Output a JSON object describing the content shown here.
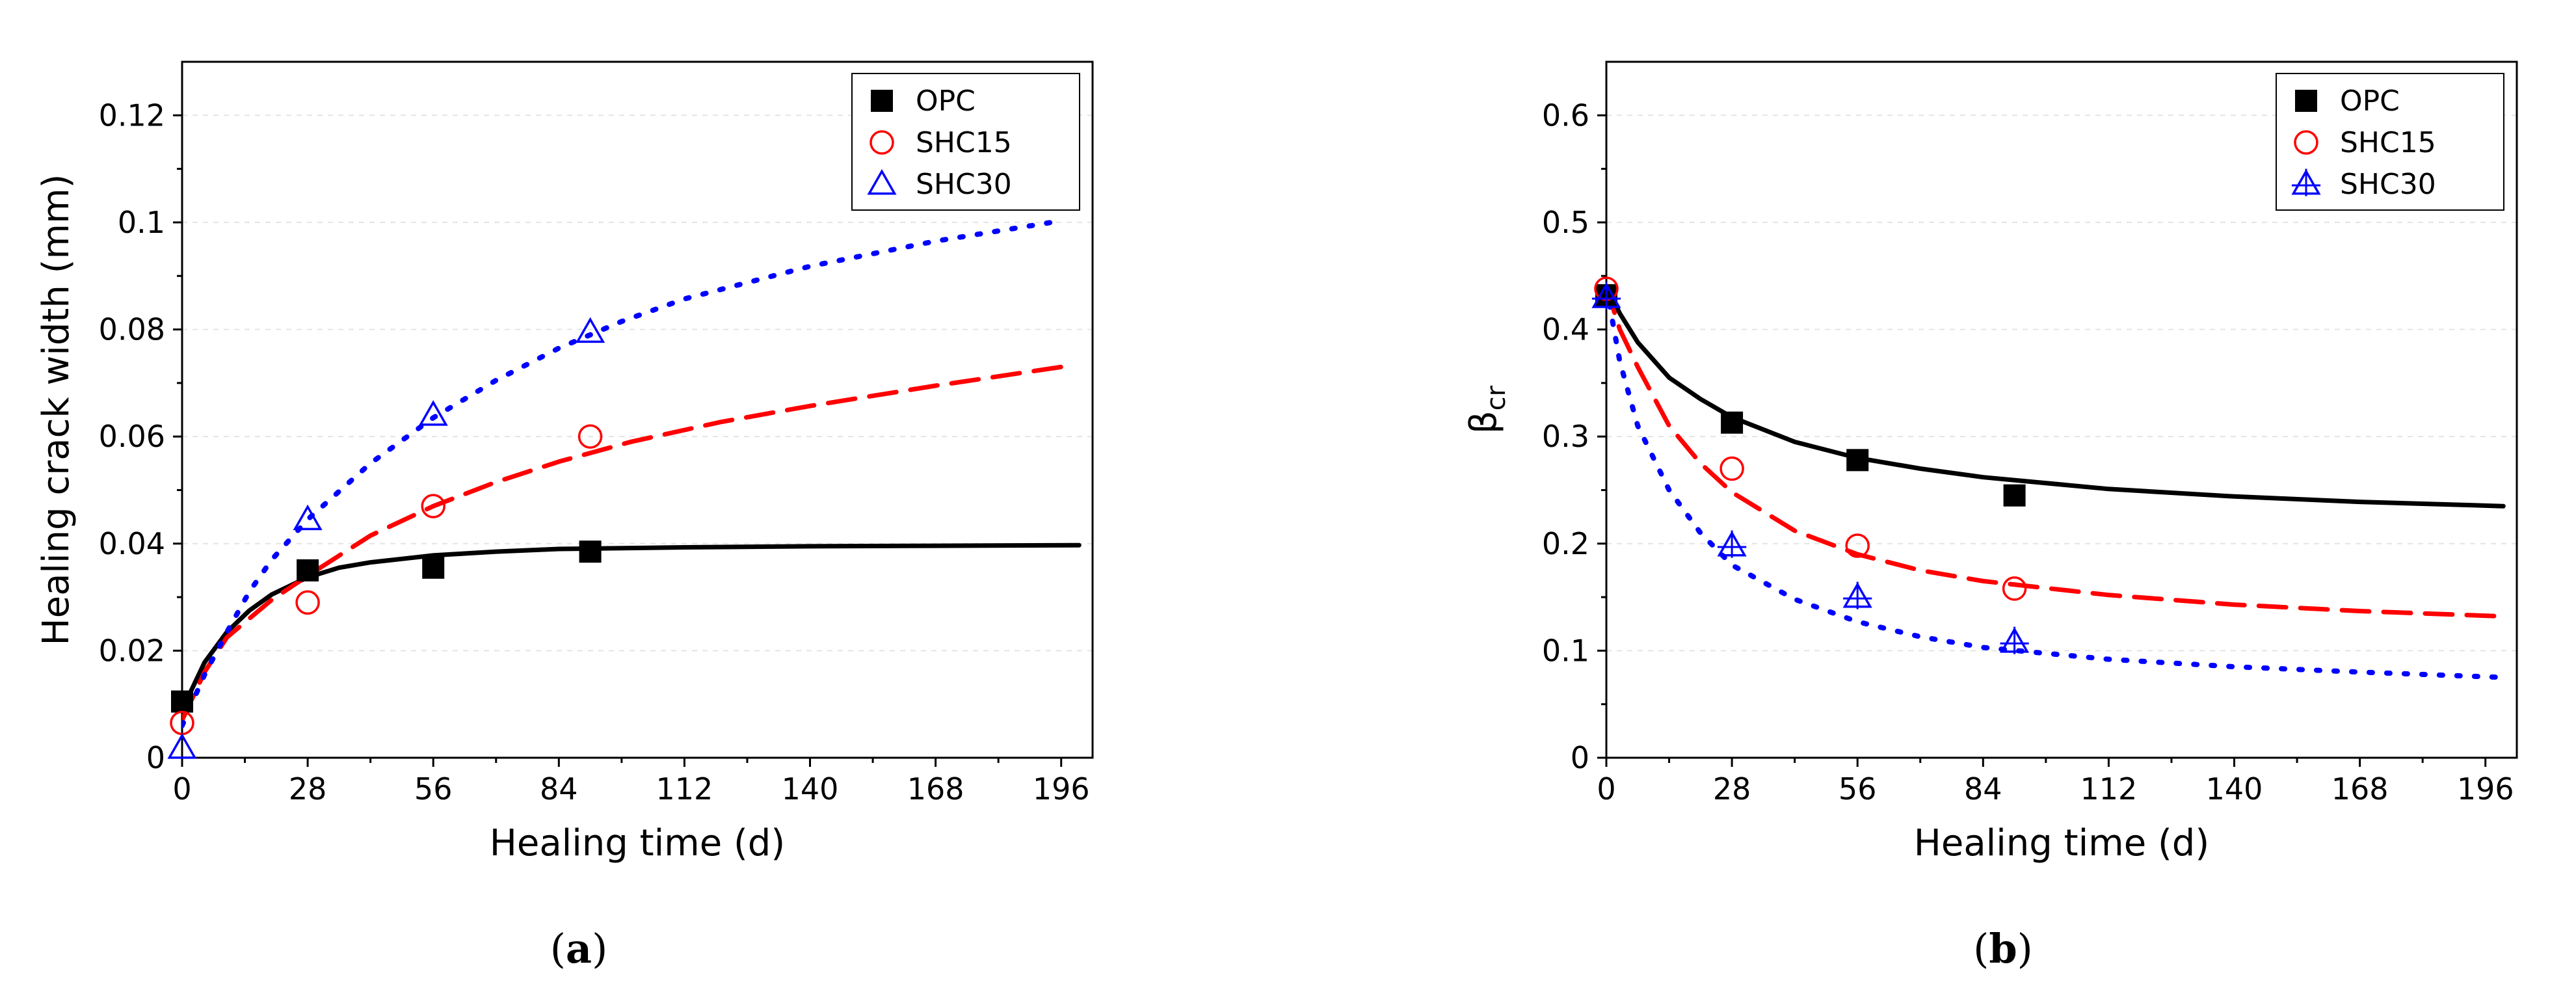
{
  "chart_data": [
    {
      "type": "scatter",
      "panel_label": {
        "open": "(",
        "letter": "a",
        "close": ")"
      },
      "xlabel": "Healing time (d)",
      "ylabel": "Healing crack width (mm)",
      "ylabel_main": "Healing crack width (mm)",
      "ylabel_sub": "",
      "xlim": [
        0,
        203
      ],
      "ylim": [
        0,
        0.13
      ],
      "xticks": [
        0,
        28,
        56,
        84,
        112,
        140,
        168,
        196
      ],
      "xtick_labels": [
        "0",
        "28",
        "56",
        "84",
        "112",
        "140",
        "168",
        "196"
      ],
      "yticks": [
        0,
        0.02,
        0.04,
        0.06,
        0.08,
        0.1,
        0.12
      ],
      "ytick_labels": [
        "0",
        "0.02",
        "0.04",
        "0.06",
        "0.08",
        "0.1",
        "0.12"
      ],
      "legend_position": "top-right",
      "series": [
        {
          "name": "OPC",
          "marker": "square",
          "color": "#000000",
          "line": "solid",
          "points": [
            [
              0,
              0.0105
            ],
            [
              28,
              0.035
            ],
            [
              56,
              0.0355
            ],
            [
              91,
              0.0385
            ]
          ],
          "curve": [
            [
              0,
              0.008
            ],
            [
              2,
              0.0125
            ],
            [
              5,
              0.0178
            ],
            [
              10,
              0.0235
            ],
            [
              15,
              0.0275
            ],
            [
              20,
              0.0305
            ],
            [
              28,
              0.0337
            ],
            [
              35,
              0.0355
            ],
            [
              42,
              0.0365
            ],
            [
              56,
              0.0378
            ],
            [
              70,
              0.0385
            ],
            [
              84,
              0.039
            ],
            [
              112,
              0.0393
            ],
            [
              140,
              0.0395
            ],
            [
              168,
              0.0396
            ],
            [
              200,
              0.0397
            ]
          ]
        },
        {
          "name": "SHC15",
          "marker": "circle",
          "color": "#ff0000",
          "line": "dashed",
          "points": [
            [
              0,
              0.0065
            ],
            [
              28,
              0.029
            ],
            [
              56,
              0.047
            ],
            [
              91,
              0.06
            ]
          ],
          "curve": [
            [
              0,
              0.007
            ],
            [
              5,
              0.016
            ],
            [
              10,
              0.0225
            ],
            [
              20,
              0.0295
            ],
            [
              28,
              0.034
            ],
            [
              42,
              0.0415
            ],
            [
              56,
              0.047
            ],
            [
              70,
              0.0515
            ],
            [
              84,
              0.0553
            ],
            [
              100,
              0.059
            ],
            [
              120,
              0.0627
            ],
            [
              140,
              0.0657
            ],
            [
              168,
              0.0695
            ],
            [
              196,
              0.073
            ]
          ]
        },
        {
          "name": "SHC30",
          "marker": "triangle",
          "color": "#0000ff",
          "line": "dotted",
          "points": [
            [
              0,
              0.0018
            ],
            [
              28,
              0.0445
            ],
            [
              56,
              0.064
            ],
            [
              91,
              0.0795
            ]
          ],
          "curve": [
            [
              0,
              0.006
            ],
            [
              5,
              0.0155
            ],
            [
              10,
              0.0235
            ],
            [
              15,
              0.031
            ],
            [
              20,
              0.037
            ],
            [
              28,
              0.0445
            ],
            [
              42,
              0.055
            ],
            [
              56,
              0.0635
            ],
            [
              70,
              0.0705
            ],
            [
              84,
              0.0765
            ],
            [
              98,
              0.0815
            ],
            [
              112,
              0.0857
            ],
            [
              140,
              0.0918
            ],
            [
              168,
              0.0965
            ],
            [
              196,
              0.1003
            ]
          ]
        }
      ]
    },
    {
      "type": "scatter",
      "panel_label": {
        "open": "(",
        "letter": "b",
        "close": ")"
      },
      "xlabel": "Healing time (d)",
      "ylabel": "βcr",
      "ylabel_main": "β",
      "ylabel_sub": "cr",
      "xlim": [
        0,
        203
      ],
      "ylim": [
        0,
        0.65
      ],
      "xticks": [
        0,
        28,
        56,
        84,
        112,
        140,
        168,
        196
      ],
      "xtick_labels": [
        "0",
        "28",
        "56",
        "84",
        "112",
        "140",
        "168",
        "196"
      ],
      "yticks": [
        0,
        0.1,
        0.2,
        0.3,
        0.4,
        0.5,
        0.6
      ],
      "ytick_labels": [
        "0",
        "0.1",
        "0.2",
        "0.3",
        "0.4",
        "0.5",
        "0.6"
      ],
      "legend_position": "top-right",
      "series": [
        {
          "name": "OPC",
          "marker": "square",
          "color": "#000000",
          "line": "solid",
          "points": [
            [
              0,
              0.432
            ],
            [
              28,
              0.313
            ],
            [
              56,
              0.278
            ],
            [
              91,
              0.245
            ]
          ],
          "curve": [
            [
              0,
              0.44
            ],
            [
              3,
              0.415
            ],
            [
              7,
              0.388
            ],
            [
              14,
              0.355
            ],
            [
              21,
              0.335
            ],
            [
              28,
              0.318
            ],
            [
              42,
              0.295
            ],
            [
              56,
              0.28
            ],
            [
              70,
              0.27
            ],
            [
              84,
              0.262
            ],
            [
              112,
              0.251
            ],
            [
              140,
              0.244
            ],
            [
              168,
              0.239
            ],
            [
              200,
              0.235
            ]
          ]
        },
        {
          "name": "SHC15",
          "marker": "circle",
          "color": "#ff0000",
          "line": "dashed",
          "points": [
            [
              0,
              0.438
            ],
            [
              28,
              0.27
            ],
            [
              56,
              0.198
            ],
            [
              91,
              0.158
            ]
          ],
          "curve": [
            [
              0,
              0.44
            ],
            [
              3,
              0.4
            ],
            [
              7,
              0.365
            ],
            [
              14,
              0.31
            ],
            [
              21,
              0.275
            ],
            [
              28,
              0.248
            ],
            [
              42,
              0.212
            ],
            [
              56,
              0.19
            ],
            [
              70,
              0.175
            ],
            [
              84,
              0.165
            ],
            [
              112,
              0.152
            ],
            [
              140,
              0.143
            ],
            [
              168,
              0.137
            ],
            [
              200,
              0.132
            ]
          ]
        },
        {
          "name": "SHC30",
          "marker": "triangle-plus",
          "color": "#0000ff",
          "line": "dotted",
          "points": [
            [
              0,
              0.43
            ],
            [
              28,
              0.198
            ],
            [
              56,
              0.15
            ],
            [
              91,
              0.108
            ]
          ],
          "curve": [
            [
              0,
              0.44
            ],
            [
              3,
              0.37
            ],
            [
              7,
              0.31
            ],
            [
              14,
              0.25
            ],
            [
              21,
              0.21
            ],
            [
              28,
              0.18
            ],
            [
              42,
              0.148
            ],
            [
              56,
              0.127
            ],
            [
              70,
              0.113
            ],
            [
              84,
              0.103
            ],
            [
              112,
              0.092
            ],
            [
              140,
              0.085
            ],
            [
              168,
              0.08
            ],
            [
              200,
              0.075
            ]
          ]
        }
      ]
    }
  ]
}
